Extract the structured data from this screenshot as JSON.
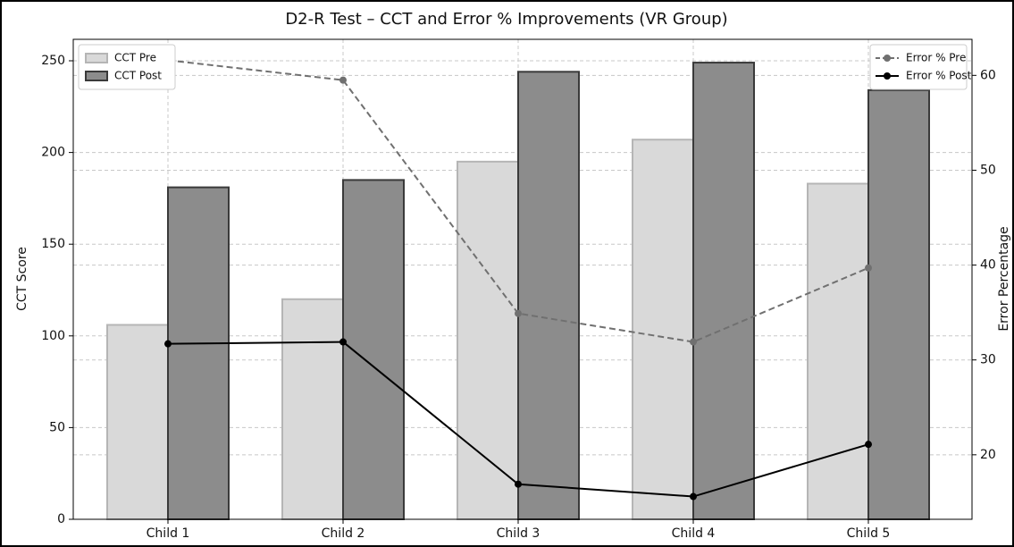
{
  "chart_data": {
    "type": "bar",
    "title": "D2-R Test – CCT and Error % Improvements (VR Group)",
    "ylabel": "CCT Score",
    "y2label": "Error Percentage",
    "categories": [
      "Child 1",
      "Child 2",
      "Child 3",
      "Child 4",
      "Child 5"
    ],
    "series": [
      {
        "name": "CCT Pre",
        "type": "bar",
        "color": "#d9d9d9",
        "edgecolor": "#b5b5b5",
        "values": [
          106,
          120,
          195,
          207,
          183
        ]
      },
      {
        "name": "CCT Post",
        "type": "bar",
        "color": "#8c8c8c",
        "edgecolor": "#3a3a3a",
        "values": [
          181,
          185,
          244,
          249,
          234
        ]
      },
      {
        "name": "Error % Pre",
        "type": "line",
        "axis": "y2",
        "color": "#707070",
        "linestyle": "dashed",
        "values": [
          61.6,
          59.5,
          34.9,
          31.9,
          39.7
        ]
      },
      {
        "name": "Error % Post",
        "type": "line",
        "axis": "y2",
        "color": "#000000",
        "linestyle": "solid",
        "values": [
          31.7,
          31.9,
          16.9,
          15.6,
          21.1
        ]
      }
    ],
    "ylim": [
      0,
      261.7
    ],
    "yticks": [
      0,
      50,
      100,
      150,
      200,
      250
    ],
    "y2lim": [
      13.2,
      63.8
    ],
    "y2ticks": [
      20,
      30,
      40,
      50,
      60
    ],
    "grid": true,
    "legend": "upper left",
    "legend2": "upper right"
  }
}
